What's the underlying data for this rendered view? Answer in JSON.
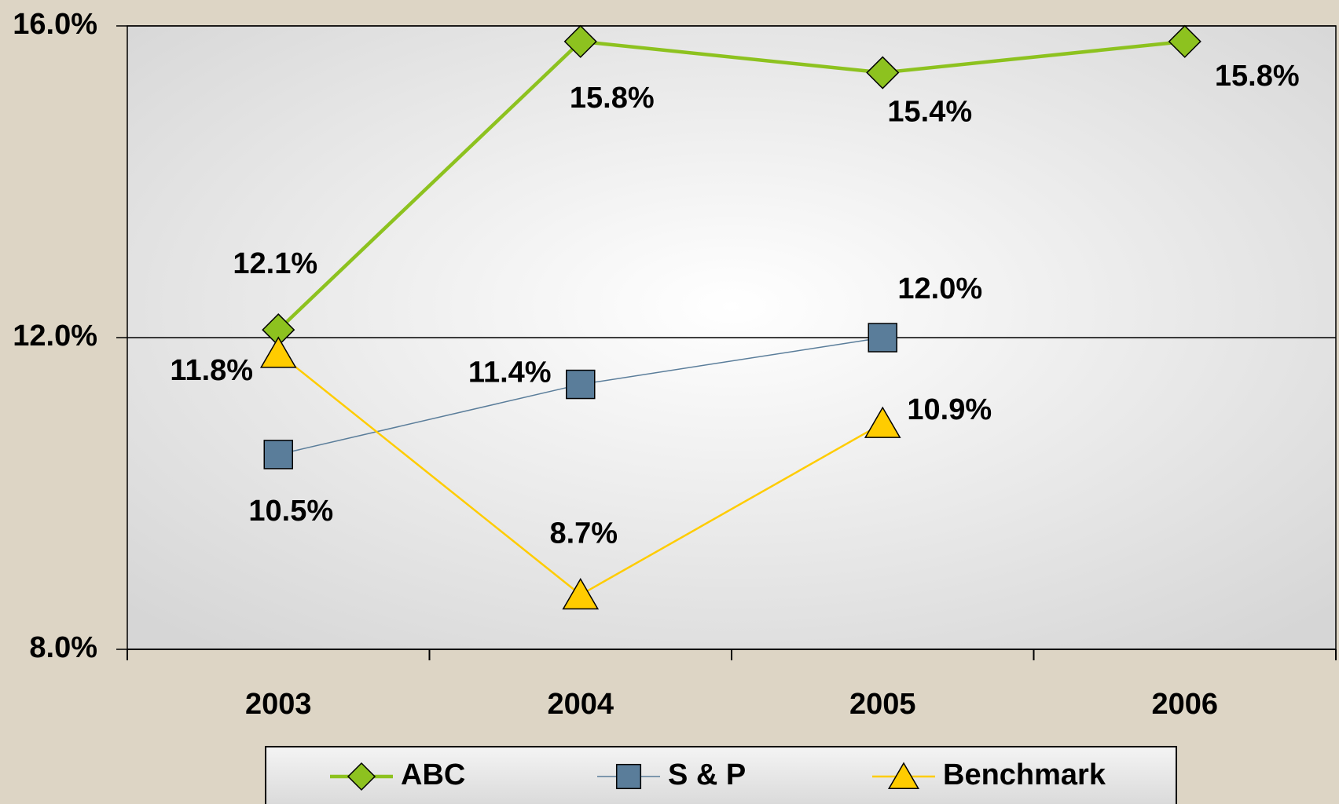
{
  "chart_data": {
    "type": "line",
    "categories": [
      "2003",
      "2004",
      "2005",
      "2006"
    ],
    "series": [
      {
        "name": "ABC",
        "color": "#8dc21f",
        "marker": "diamond",
        "values": [
          12.1,
          15.8,
          15.4,
          15.8
        ],
        "value_labels": [
          "12.1%",
          "15.8%",
          "15.4%",
          "15.8%"
        ]
      },
      {
        "name": "S & P",
        "color": "#5a7d9a",
        "marker": "square",
        "values": [
          10.5,
          11.4,
          12.0,
          null
        ],
        "value_labels": [
          "10.5%",
          "11.4%",
          "12.0%",
          null
        ]
      },
      {
        "name": "Benchmark",
        "color": "#ffcc00",
        "marker": "triangle",
        "values": [
          11.8,
          8.7,
          10.9,
          null
        ],
        "value_labels": [
          "11.8%",
          "8.7%",
          "10.9%",
          null
        ]
      }
    ],
    "ylim": [
      8,
      16
    ],
    "yticks": [
      {
        "value": 8,
        "label": "8.0%"
      },
      {
        "value": 12,
        "label": "12.0%"
      },
      {
        "value": 16,
        "label": "16.0%"
      }
    ],
    "grid": true,
    "legend": "bottom"
  }
}
